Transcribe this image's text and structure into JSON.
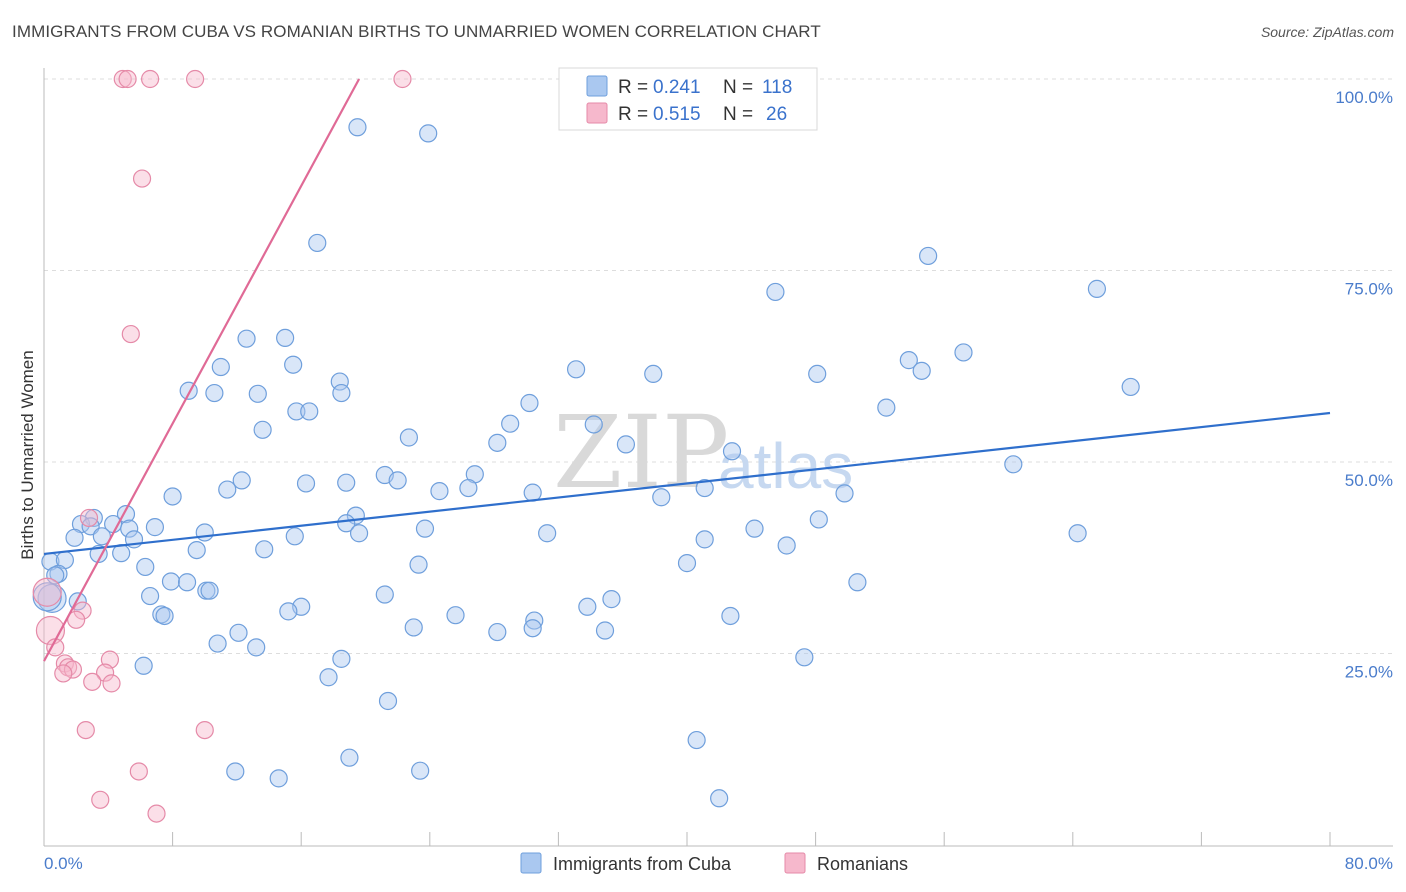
{
  "header": {
    "title": "IMMIGRANTS FROM CUBA VS ROMANIAN BIRTHS TO UNMARRIED WOMEN CORRELATION CHART",
    "source": "Source: ZipAtlas.com"
  },
  "watermark": {
    "zip": "ZIP",
    "atlas": "atlas"
  },
  "legend": {
    "r_label": "R =",
    "n_label": "N =",
    "entries": [
      {
        "r": "0.241",
        "n": "118"
      },
      {
        "r": "0.515",
        "n": "26"
      }
    ]
  },
  "colors": {
    "cuba_fill": "#aac8f0",
    "cuba_stroke": "#6f9fdc",
    "cuba_line": "#2f6fcc",
    "rom_fill": "#f6b8cc",
    "rom_stroke": "#e58aa8",
    "rom_line": "#e06a96",
    "grid": "#dddddd",
    "axis": "#bbbbbb",
    "tick_label": "#4a7ccb"
  },
  "chart_data": {
    "type": "scatter",
    "title": "IMMIGRANTS FROM CUBA VS ROMANIAN BIRTHS TO UNMARRIED WOMEN CORRELATION CHART",
    "xlabel": "",
    "ylabel": "Births to Unmarried Women",
    "xlim": [
      0,
      80
    ],
    "ylim": [
      0,
      105
    ],
    "x_tick_labels": [
      "0.0%",
      "80.0%"
    ],
    "y_ticks": [
      25,
      50,
      75,
      100
    ],
    "y_tick_labels": [
      "25.0%",
      "50.0%",
      "75.0%",
      "100.0%"
    ],
    "grid": true,
    "legend_position": "top-center",
    "series": [
      {
        "name": "Immigrants from Cuba",
        "r": 0.241,
        "n": 118,
        "trend": {
          "x": [
            0,
            80
          ],
          "y": [
            38.0,
            56.4
          ]
        },
        "points": [
          [
            19.5,
            93.7
          ],
          [
            23.9,
            92.9
          ],
          [
            17.0,
            78.6
          ],
          [
            55.0,
            76.9
          ],
          [
            45.5,
            72.2
          ],
          [
            65.5,
            72.6
          ],
          [
            12.6,
            66.1
          ],
          [
            15.0,
            66.2
          ],
          [
            57.2,
            64.3
          ],
          [
            11.0,
            62.4
          ],
          [
            15.5,
            62.7
          ],
          [
            33.1,
            62.1
          ],
          [
            37.9,
            61.5
          ],
          [
            48.1,
            61.5
          ],
          [
            53.8,
            63.3
          ],
          [
            54.6,
            61.9
          ],
          [
            18.4,
            60.5
          ],
          [
            67.6,
            59.8
          ],
          [
            9.0,
            59.3
          ],
          [
            10.6,
            59.0
          ],
          [
            13.3,
            58.9
          ],
          [
            18.5,
            59.0
          ],
          [
            30.2,
            57.7
          ],
          [
            52.4,
            57.1
          ],
          [
            15.7,
            56.6
          ],
          [
            16.5,
            56.6
          ],
          [
            29.0,
            55.0
          ],
          [
            34.2,
            54.9
          ],
          [
            13.6,
            54.2
          ],
          [
            22.7,
            53.2
          ],
          [
            28.2,
            52.5
          ],
          [
            36.2,
            52.3
          ],
          [
            42.8,
            51.4
          ],
          [
            60.3,
            49.7
          ],
          [
            26.8,
            48.4
          ],
          [
            21.2,
            48.3
          ],
          [
            22.0,
            47.6
          ],
          [
            12.3,
            47.6
          ],
          [
            16.3,
            47.2
          ],
          [
            18.8,
            47.3
          ],
          [
            11.4,
            46.4
          ],
          [
            26.4,
            46.6
          ],
          [
            41.1,
            46.6
          ],
          [
            24.6,
            46.2
          ],
          [
            30.4,
            46.0
          ],
          [
            8.0,
            45.5
          ],
          [
            38.4,
            45.4
          ],
          [
            49.8,
            45.9
          ],
          [
            5.1,
            43.2
          ],
          [
            3.1,
            42.7
          ],
          [
            19.4,
            43.0
          ],
          [
            2.3,
            41.9
          ],
          [
            4.3,
            41.9
          ],
          [
            2.9,
            41.6
          ],
          [
            5.3,
            41.3
          ],
          [
            6.9,
            41.5
          ],
          [
            23.7,
            41.3
          ],
          [
            18.8,
            42.0
          ],
          [
            19.6,
            40.7
          ],
          [
            10.0,
            40.8
          ],
          [
            15.6,
            40.3
          ],
          [
            31.3,
            40.7
          ],
          [
            44.2,
            41.3
          ],
          [
            48.2,
            42.5
          ],
          [
            64.3,
            40.7
          ],
          [
            1.9,
            40.1
          ],
          [
            3.6,
            40.3
          ],
          [
            5.6,
            39.9
          ],
          [
            41.1,
            39.9
          ],
          [
            46.2,
            39.1
          ],
          [
            9.5,
            38.5
          ],
          [
            13.7,
            38.6
          ],
          [
            3.4,
            38.0
          ],
          [
            4.8,
            38.1
          ],
          [
            0.4,
            37.0
          ],
          [
            1.3,
            37.2
          ],
          [
            6.3,
            36.3
          ],
          [
            23.3,
            36.6
          ],
          [
            40.0,
            36.8
          ],
          [
            0.9,
            35.4
          ],
          [
            0.7,
            35.2
          ],
          [
            7.9,
            34.4
          ],
          [
            8.9,
            34.3
          ],
          [
            50.6,
            34.3
          ],
          [
            10.1,
            33.2
          ],
          [
            10.3,
            33.2
          ],
          [
            21.2,
            32.7
          ],
          [
            0.5,
            32.2
          ],
          [
            0.2,
            32.4
          ],
          [
            6.6,
            32.5
          ],
          [
            2.1,
            31.8
          ],
          [
            35.3,
            32.1
          ],
          [
            16.0,
            31.1
          ],
          [
            33.8,
            31.1
          ],
          [
            7.3,
            30.1
          ],
          [
            7.5,
            29.9
          ],
          [
            25.6,
            30.0
          ],
          [
            30.5,
            29.3
          ],
          [
            42.7,
            29.9
          ],
          [
            23.0,
            28.4
          ],
          [
            30.4,
            28.3
          ],
          [
            34.9,
            28.0
          ],
          [
            28.2,
            27.8
          ],
          [
            12.1,
            27.7
          ],
          [
            10.8,
            26.3
          ],
          [
            13.2,
            25.8
          ],
          [
            18.5,
            24.3
          ],
          [
            47.3,
            24.5
          ],
          [
            6.2,
            23.4
          ],
          [
            17.7,
            21.9
          ],
          [
            21.4,
            18.8
          ],
          [
            40.6,
            13.7
          ],
          [
            19.0,
            11.4
          ],
          [
            11.9,
            9.6
          ],
          [
            14.6,
            8.7
          ],
          [
            23.4,
            9.7
          ],
          [
            42.0,
            6.1
          ],
          [
            15.2,
            30.5
          ]
        ]
      },
      {
        "name": "Romanians",
        "r": 0.515,
        "n": 26,
        "trend": {
          "x": [
            0,
            19.6
          ],
          "y": [
            24.0,
            100.0
          ]
        },
        "points": [
          [
            4.9,
            100
          ],
          [
            5.2,
            100
          ],
          [
            6.6,
            100
          ],
          [
            9.4,
            100
          ],
          [
            22.3,
            100
          ],
          [
            6.1,
            87.0
          ],
          [
            5.4,
            66.7
          ],
          [
            2.8,
            42.7
          ],
          [
            0.2,
            33.0
          ],
          [
            2.4,
            30.6
          ],
          [
            2.0,
            29.4
          ],
          [
            0.4,
            28.0
          ],
          [
            0.7,
            25.8
          ],
          [
            4.1,
            24.2
          ],
          [
            1.3,
            23.7
          ],
          [
            1.5,
            23.2
          ],
          [
            1.8,
            22.9
          ],
          [
            1.2,
            22.4
          ],
          [
            3.8,
            22.5
          ],
          [
            3.0,
            21.3
          ],
          [
            4.2,
            21.1
          ],
          [
            2.6,
            15.0
          ],
          [
            10.0,
            15.0
          ],
          [
            5.9,
            9.6
          ],
          [
            3.5,
            5.9
          ],
          [
            7.0,
            4.1
          ]
        ]
      }
    ]
  }
}
